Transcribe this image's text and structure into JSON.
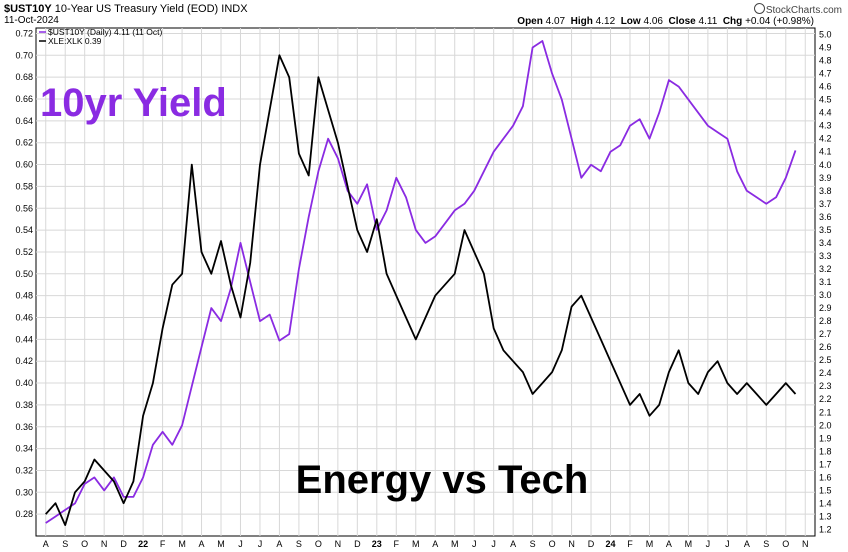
{
  "header": {
    "symbol": "$UST10Y",
    "description": "10-Year US Treasury Yield (EOD)",
    "exchange": "INDX",
    "date": "11-Oct-2024",
    "brand": "StockCharts.com",
    "open_label": "Open",
    "open": "4.07",
    "high_label": "High",
    "high": "4.12",
    "low_label": "Low",
    "low": "4.06",
    "close_label": "Close",
    "close": "4.11",
    "chg_label": "Chg",
    "chg": "+0.04 (+0.98%)"
  },
  "chart_data": {
    "type": "line",
    "annotations": [
      "10yr Yield",
      "Energy vs Tech"
    ],
    "x_labels": [
      "A",
      "S",
      "O",
      "N",
      "D",
      "22",
      "F",
      "M",
      "A",
      "M",
      "J",
      "J",
      "A",
      "S",
      "O",
      "N",
      "D",
      "23",
      "F",
      "M",
      "A",
      "M",
      "J",
      "J",
      "A",
      "S",
      "O",
      "N",
      "D",
      "24",
      "F",
      "M",
      "A",
      "M",
      "J",
      "J",
      "A",
      "S",
      "O",
      "N"
    ],
    "left_axis": {
      "ylim": [
        0.26,
        0.725
      ],
      "ticks": [
        0.28,
        0.3,
        0.32,
        0.34,
        0.36,
        0.38,
        0.4,
        0.42,
        0.44,
        0.46,
        0.48,
        0.5,
        0.52,
        0.54,
        0.56,
        0.58,
        0.6,
        0.62,
        0.64,
        0.66,
        0.68,
        0.7,
        0.72
      ]
    },
    "right_axis": {
      "ylim": [
        1.15,
        5.05
      ],
      "ticks": [
        1.2,
        1.3,
        1.4,
        1.5,
        1.6,
        1.7,
        1.8,
        1.9,
        2.0,
        2.1,
        2.2,
        2.3,
        2.4,
        2.5,
        2.6,
        2.7,
        2.8,
        2.9,
        3.0,
        3.1,
        3.2,
        3.3,
        3.4,
        3.5,
        3.6,
        3.7,
        3.8,
        3.9,
        4.0,
        4.1,
        4.2,
        4.3,
        4.4,
        4.5,
        4.6,
        4.7,
        4.8,
        4.9,
        5.0
      ]
    },
    "series": [
      {
        "name": "$UST10Y (Daily) 4.11 (11 Oct)",
        "axis": "right",
        "color": "#8a2be2",
        "points": [
          [
            0,
            1.25
          ],
          [
            0.5,
            1.3
          ],
          [
            1,
            1.35
          ],
          [
            1.5,
            1.4
          ],
          [
            2,
            1.55
          ],
          [
            2.5,
            1.6
          ],
          [
            3,
            1.5
          ],
          [
            3.5,
            1.6
          ],
          [
            4,
            1.45
          ],
          [
            4.5,
            1.45
          ],
          [
            5,
            1.6
          ],
          [
            5.5,
            1.85
          ],
          [
            6,
            1.95
          ],
          [
            6.5,
            1.85
          ],
          [
            7,
            2.0
          ],
          [
            7.5,
            2.3
          ],
          [
            8,
            2.6
          ],
          [
            8.5,
            2.9
          ],
          [
            9,
            2.8
          ],
          [
            9.5,
            3.05
          ],
          [
            10,
            3.4
          ],
          [
            10.5,
            3.1
          ],
          [
            11,
            2.8
          ],
          [
            11.5,
            2.85
          ],
          [
            12,
            2.65
          ],
          [
            12.5,
            2.7
          ],
          [
            13,
            3.2
          ],
          [
            13.5,
            3.6
          ],
          [
            14,
            3.95
          ],
          [
            14.5,
            4.2
          ],
          [
            15,
            4.05
          ],
          [
            15.5,
            3.8
          ],
          [
            16,
            3.7
          ],
          [
            16.5,
            3.85
          ],
          [
            17,
            3.5
          ],
          [
            17.5,
            3.65
          ],
          [
            18,
            3.9
          ],
          [
            18.5,
            3.75
          ],
          [
            19,
            3.5
          ],
          [
            19.5,
            3.4
          ],
          [
            20,
            3.45
          ],
          [
            20.5,
            3.55
          ],
          [
            21,
            3.65
          ],
          [
            21.5,
            3.7
          ],
          [
            22,
            3.8
          ],
          [
            22.5,
            3.95
          ],
          [
            23,
            4.1
          ],
          [
            23.5,
            4.2
          ],
          [
            24,
            4.3
          ],
          [
            24.5,
            4.45
          ],
          [
            25,
            4.9
          ],
          [
            25.5,
            4.95
          ],
          [
            26,
            4.7
          ],
          [
            26.5,
            4.5
          ],
          [
            27,
            4.2
          ],
          [
            27.5,
            3.9
          ],
          [
            28,
            4.0
          ],
          [
            28.5,
            3.95
          ],
          [
            29,
            4.1
          ],
          [
            29.5,
            4.15
          ],
          [
            30,
            4.3
          ],
          [
            30.5,
            4.35
          ],
          [
            31,
            4.2
          ],
          [
            31.5,
            4.4
          ],
          [
            32,
            4.65
          ],
          [
            32.5,
            4.6
          ],
          [
            33,
            4.5
          ],
          [
            33.5,
            4.4
          ],
          [
            34,
            4.3
          ],
          [
            34.5,
            4.25
          ],
          [
            35,
            4.2
          ],
          [
            35.5,
            3.95
          ],
          [
            36,
            3.8
          ],
          [
            36.5,
            3.75
          ],
          [
            37,
            3.7
          ],
          [
            37.5,
            3.75
          ],
          [
            38,
            3.9
          ],
          [
            38.5,
            4.11
          ]
        ]
      },
      {
        "name": "XLE:XLK 0.39",
        "axis": "left",
        "color": "#000000",
        "points": [
          [
            0,
            0.28
          ],
          [
            0.5,
            0.29
          ],
          [
            1,
            0.27
          ],
          [
            1.5,
            0.3
          ],
          [
            2,
            0.31
          ],
          [
            2.5,
            0.33
          ],
          [
            3,
            0.32
          ],
          [
            3.5,
            0.31
          ],
          [
            4,
            0.29
          ],
          [
            4.5,
            0.31
          ],
          [
            5,
            0.37
          ],
          [
            5.5,
            0.4
          ],
          [
            6,
            0.45
          ],
          [
            6.5,
            0.49
          ],
          [
            7,
            0.5
          ],
          [
            7.5,
            0.6
          ],
          [
            8,
            0.52
          ],
          [
            8.5,
            0.5
          ],
          [
            9,
            0.53
          ],
          [
            9.5,
            0.49
          ],
          [
            10,
            0.46
          ],
          [
            10.5,
            0.51
          ],
          [
            11,
            0.6
          ],
          [
            11.5,
            0.65
          ],
          [
            12,
            0.7
          ],
          [
            12.5,
            0.68
          ],
          [
            13,
            0.61
          ],
          [
            13.5,
            0.59
          ],
          [
            14,
            0.68
          ],
          [
            14.5,
            0.65
          ],
          [
            15,
            0.62
          ],
          [
            15.5,
            0.58
          ],
          [
            16,
            0.54
          ],
          [
            16.5,
            0.52
          ],
          [
            17,
            0.55
          ],
          [
            17.5,
            0.5
          ],
          [
            18,
            0.48
          ],
          [
            18.5,
            0.46
          ],
          [
            19,
            0.44
          ],
          [
            19.5,
            0.46
          ],
          [
            20,
            0.48
          ],
          [
            20.5,
            0.49
          ],
          [
            21,
            0.5
          ],
          [
            21.5,
            0.54
          ],
          [
            22,
            0.52
          ],
          [
            22.5,
            0.5
          ],
          [
            23,
            0.45
          ],
          [
            23.5,
            0.43
          ],
          [
            24,
            0.42
          ],
          [
            24.5,
            0.41
          ],
          [
            25,
            0.39
          ],
          [
            25.5,
            0.4
          ],
          [
            26,
            0.41
          ],
          [
            26.5,
            0.43
          ],
          [
            27,
            0.47
          ],
          [
            27.5,
            0.48
          ],
          [
            28,
            0.46
          ],
          [
            28.5,
            0.44
          ],
          [
            29,
            0.42
          ],
          [
            29.5,
            0.4
          ],
          [
            30,
            0.38
          ],
          [
            30.5,
            0.39
          ],
          [
            31,
            0.37
          ],
          [
            31.5,
            0.38
          ],
          [
            32,
            0.41
          ],
          [
            32.5,
            0.43
          ],
          [
            33,
            0.4
          ],
          [
            33.5,
            0.39
          ],
          [
            34,
            0.41
          ],
          [
            34.5,
            0.42
          ],
          [
            35,
            0.4
          ],
          [
            35.5,
            0.39
          ],
          [
            36,
            0.4
          ],
          [
            36.5,
            0.39
          ],
          [
            37,
            0.38
          ],
          [
            37.5,
            0.39
          ],
          [
            38,
            0.4
          ],
          [
            38.5,
            0.39
          ]
        ]
      }
    ]
  },
  "colors": {
    "yield": "#8a2be2",
    "ratio": "#000000",
    "grid": "#d8d8d8"
  }
}
